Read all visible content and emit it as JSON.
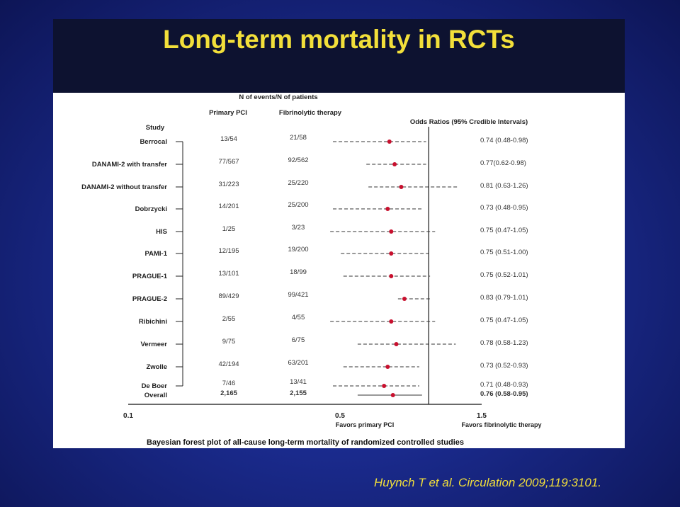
{
  "slide": {
    "title": "Long-term mortality in RCTs",
    "citation": "Huynch T et al. Circulation 2009;119:3101."
  },
  "table_header": {
    "group": "N of events/N of patients",
    "col_pci": "Primary PCI",
    "col_fib": "Fibrinolytic therapy",
    "col_study": "Study",
    "col_or": "Odds Ratios (95% Credible Intervals)"
  },
  "axis": {
    "ticks": [
      "0.1",
      "0.5",
      "1.5"
    ],
    "left_label": "Favors primary PCI",
    "right_label": "Favors fibrinolytic therapy"
  },
  "caption": "Bayesian forest plot of all-cause long-term mortality of randomized controlled studies",
  "colors": {
    "point": "#c8102e",
    "title": "#f2df3a"
  },
  "chart_data": {
    "type": "forest",
    "xscale": "log",
    "xlim": [
      0.1,
      1.5
    ],
    "reference_line": 1.0,
    "rows": [
      {
        "study": "Berrocal",
        "pci": "13/54",
        "fib": "21/58",
        "or": 0.74,
        "lo": 0.48,
        "hi": 0.98,
        "label": "0.74 (0.48-0.98)",
        "overall": false
      },
      {
        "study": "DANAMI-2 with transfer",
        "pci": "77/567",
        "fib": "92/562",
        "or": 0.77,
        "lo": 0.62,
        "hi": 0.98,
        "label": "0.77(0.62-0.98)",
        "overall": false
      },
      {
        "study": "DANAMI-2 without transfer",
        "pci": "31/223",
        "fib": "25/220",
        "or": 0.81,
        "lo": 0.63,
        "hi": 1.26,
        "label": "0.81 (0.63-1.26)",
        "overall": false
      },
      {
        "study": "Dobrzycki",
        "pci": "14/201",
        "fib": "25/200",
        "or": 0.73,
        "lo": 0.48,
        "hi": 0.95,
        "label": "0.73 (0.48-0.95)",
        "overall": false
      },
      {
        "study": "HIS",
        "pci": "1/25",
        "fib": "3/23",
        "or": 0.75,
        "lo": 0.47,
        "hi": 1.05,
        "label": "0.75 (0.47-1.05)",
        "overall": false
      },
      {
        "study": "PAMI-1",
        "pci": "12/195",
        "fib": "19/200",
        "or": 0.75,
        "lo": 0.51,
        "hi": 1.0,
        "label": "0.75 (0.51-1.00)",
        "overall": false
      },
      {
        "study": "PRAGUE-1",
        "pci": "13/101",
        "fib": "18/99",
        "or": 0.75,
        "lo": 0.52,
        "hi": 1.01,
        "label": "0.75 (0.52-1.01)",
        "overall": false
      },
      {
        "study": "PRAGUE-2",
        "pci": "89/429",
        "fib": "99/421",
        "or": 0.83,
        "lo": 0.79,
        "hi": 1.01,
        "label": "0.83 (0.79-1.01)",
        "overall": false
      },
      {
        "study": "Ribichini",
        "pci": "2/55",
        "fib": "4/55",
        "or": 0.75,
        "lo": 0.47,
        "hi": 1.05,
        "label": "0.75 (0.47-1.05)",
        "overall": false
      },
      {
        "study": "Vermeer",
        "pci": "9/75",
        "fib": "6/75",
        "or": 0.78,
        "lo": 0.58,
        "hi": 1.23,
        "label": "0.78 (0.58-1.23)",
        "overall": false
      },
      {
        "study": "Zwolle",
        "pci": "42/194",
        "fib": "63/201",
        "or": 0.73,
        "lo": 0.52,
        "hi": 0.93,
        "label": "0.73 (0.52-0.93)",
        "overall": false
      },
      {
        "study": "De Boer",
        "pci": "7/46",
        "fib": "13/41",
        "or": 0.71,
        "lo": 0.48,
        "hi": 0.93,
        "label": "0.71 (0.48-0.93)",
        "overall": false
      },
      {
        "study": "Overall",
        "pci": "2,165",
        "fib": "2,155",
        "or": 0.76,
        "lo": 0.58,
        "hi": 0.95,
        "label": "0.76 (0.58-0.95)",
        "overall": true
      }
    ]
  }
}
